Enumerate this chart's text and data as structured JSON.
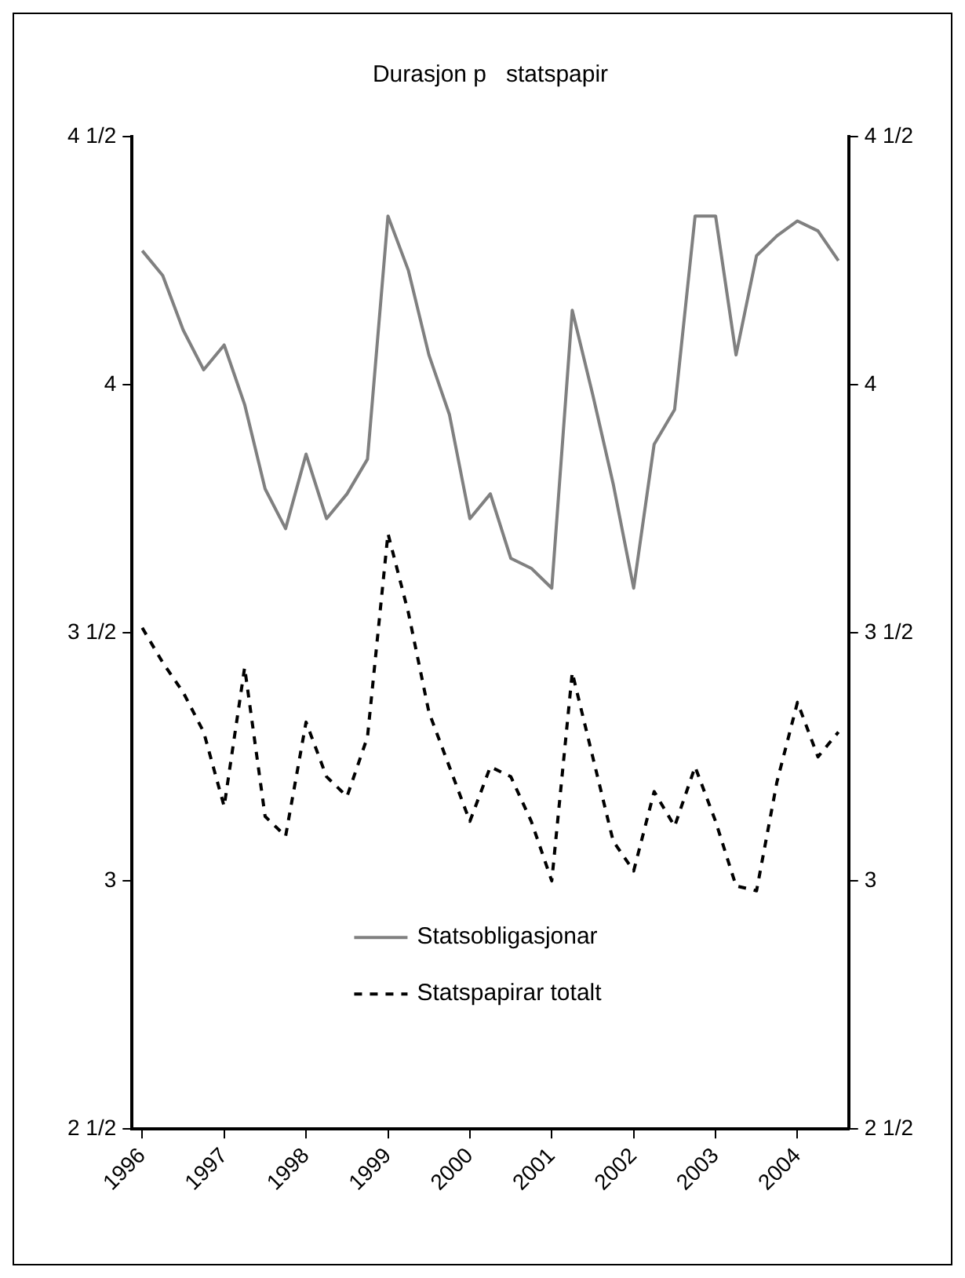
{
  "chart_data": {
    "type": "line",
    "title": "Durasjon p   statspapir",
    "categories": [
      "1996",
      null,
      null,
      null,
      "1997",
      null,
      null,
      null,
      "1998",
      null,
      null,
      null,
      "1999",
      null,
      null,
      null,
      "2000",
      null,
      null,
      null,
      "2001",
      null,
      null,
      null,
      "2002",
      null,
      null,
      null,
      "2003",
      null,
      null,
      null,
      "2004",
      null,
      null
    ],
    "series": [
      {
        "name": "Statsobligasjonar",
        "color": "#808080",
        "line_style": "solid",
        "values": [
          4.27,
          4.22,
          4.11,
          4.03,
          4.08,
          3.96,
          3.79,
          3.71,
          3.86,
          3.73,
          3.78,
          3.85,
          4.34,
          4.23,
          4.06,
          3.94,
          3.73,
          3.78,
          3.65,
          3.63,
          3.59,
          4.15,
          3.98,
          3.8,
          3.59,
          3.88,
          3.95,
          4.34,
          4.34,
          4.06,
          4.26,
          4.3,
          4.33,
          4.31,
          4.25
        ]
      },
      {
        "name": "Statspapirar totalt",
        "color": "#000000",
        "line_style": "dashed",
        "values": [
          3.51,
          3.44,
          3.38,
          3.3,
          3.15,
          3.43,
          3.13,
          3.09,
          3.32,
          3.21,
          3.17,
          3.29,
          3.7,
          3.54,
          3.34,
          3.23,
          3.12,
          3.23,
          3.21,
          3.12,
          3,
          3.42,
          3.25,
          3.08,
          3.02,
          3.18,
          3.11,
          3.23,
          3.12,
          2.99,
          2.98,
          3.2,
          3.36,
          3.25,
          3.3
        ]
      }
    ],
    "ylim": [
      2.5,
      4.5
    ],
    "yticks": [
      {
        "value": 2.5,
        "label": "2 1/2"
      },
      3,
      {
        "value": 3.5,
        "label": "3 1/2"
      },
      4,
      {
        "value": 4.5,
        "label": "4 1/2"
      }
    ],
    "y2lim": [
      2.5,
      4.5
    ],
    "y2ticks": [
      {
        "value": 2.5,
        "label": "2 1/2"
      },
      3,
      {
        "value": 3.5,
        "label": "3 1/2"
      },
      4,
      {
        "value": 4.5,
        "label": "4 1/2"
      }
    ],
    "grid": false,
    "legend": "bottom"
  }
}
